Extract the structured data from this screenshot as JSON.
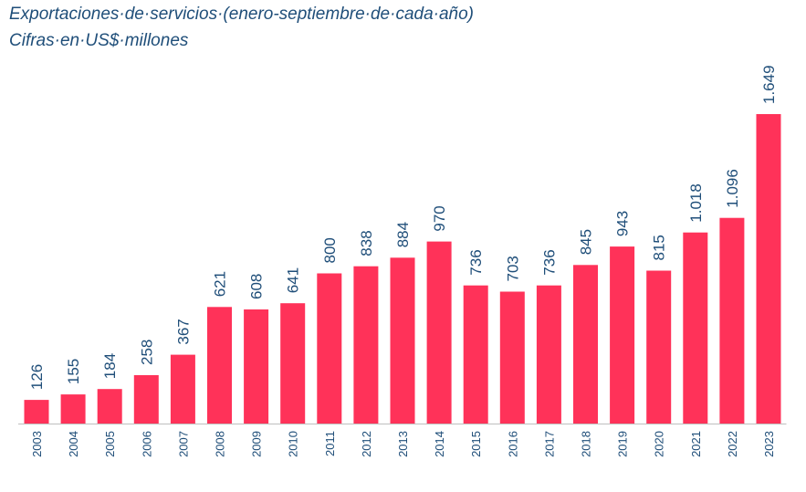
{
  "header": {
    "title": "Exportaciones·de·servicios·(enero-septiembre·de·cada·año)",
    "subtitle": "Cifras·en·US$·millones"
  },
  "colors": {
    "bar": "#FF3259",
    "text": "#1F4E79",
    "axis": "#BFBFBF"
  },
  "chart_data": {
    "type": "bar",
    "title": "Exportaciones·de·servicios·(enero-septiembre·de·cada·año)",
    "subtitle": "Cifras·en·US$·millones",
    "categories": [
      "2003",
      "2004",
      "2005",
      "2006",
      "2007",
      "2008",
      "2009",
      "2010",
      "2011",
      "2012",
      "2013",
      "2014",
      "2015",
      "2016",
      "2017",
      "2018",
      "2019",
      "2020",
      "2021",
      "2022",
      "2023"
    ],
    "values": [
      126,
      155,
      184,
      258,
      367,
      621,
      608,
      641,
      800,
      838,
      884,
      970,
      736,
      703,
      736,
      845,
      943,
      815,
      1018,
      1096,
      1649
    ],
    "value_labels": [
      "126",
      "155",
      "184",
      "258",
      "367",
      "621",
      "608",
      "641",
      "800",
      "838",
      "884",
      "970",
      "736",
      "703",
      "736",
      "845",
      "943",
      "815",
      "1.018",
      "1.096",
      "1.649"
    ],
    "xlabel": "",
    "ylabel": "",
    "ylim": [
      0,
      1649
    ],
    "grid": false,
    "legend": "none"
  }
}
